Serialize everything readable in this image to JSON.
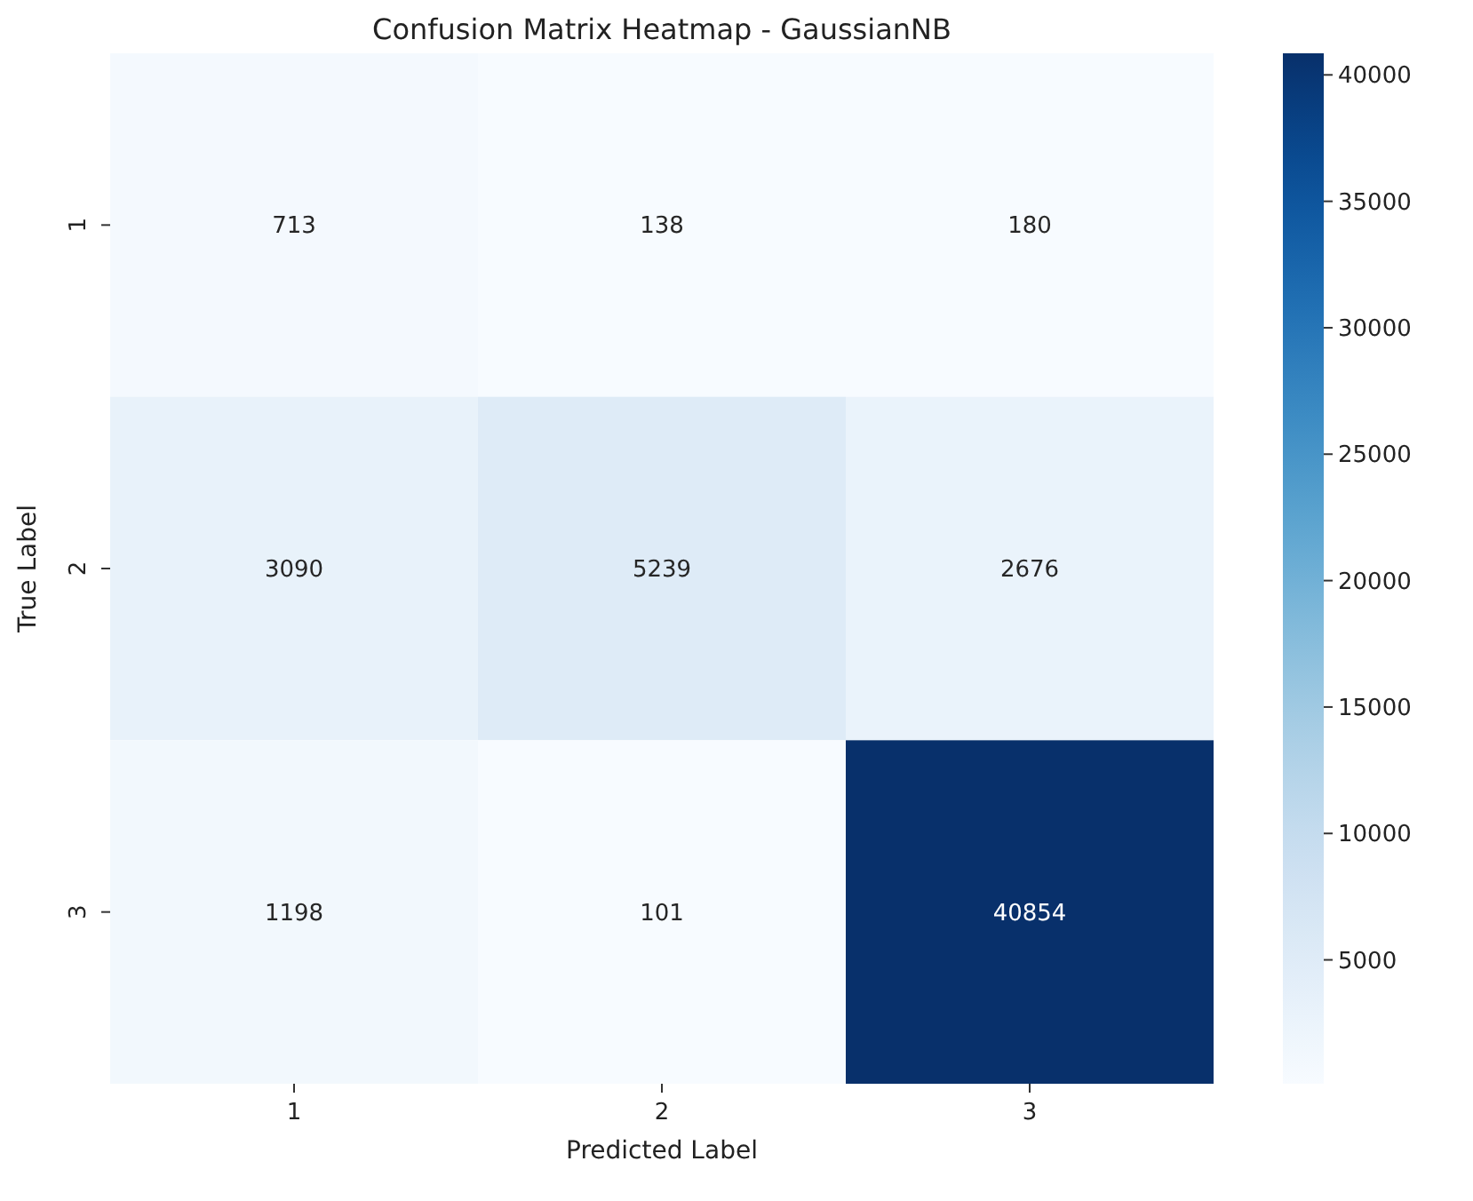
{
  "chart_data": {
    "type": "heatmap",
    "title": "Confusion Matrix Heatmap - GaussianNB",
    "xlabel": "Predicted Label",
    "ylabel": "True Label",
    "categories": [
      "1",
      "2",
      "3"
    ],
    "y_categories": [
      "1",
      "2",
      "3"
    ],
    "cells": [
      [
        713,
        138,
        180
      ],
      [
        3090,
        5239,
        2676
      ],
      [
        1198,
        101,
        40854
      ]
    ],
    "clim": [
      101,
      40854
    ],
    "data_labels": true,
    "cticks": [
      5000,
      10000,
      15000,
      20000,
      25000,
      30000,
      35000,
      40000
    ]
  }
}
